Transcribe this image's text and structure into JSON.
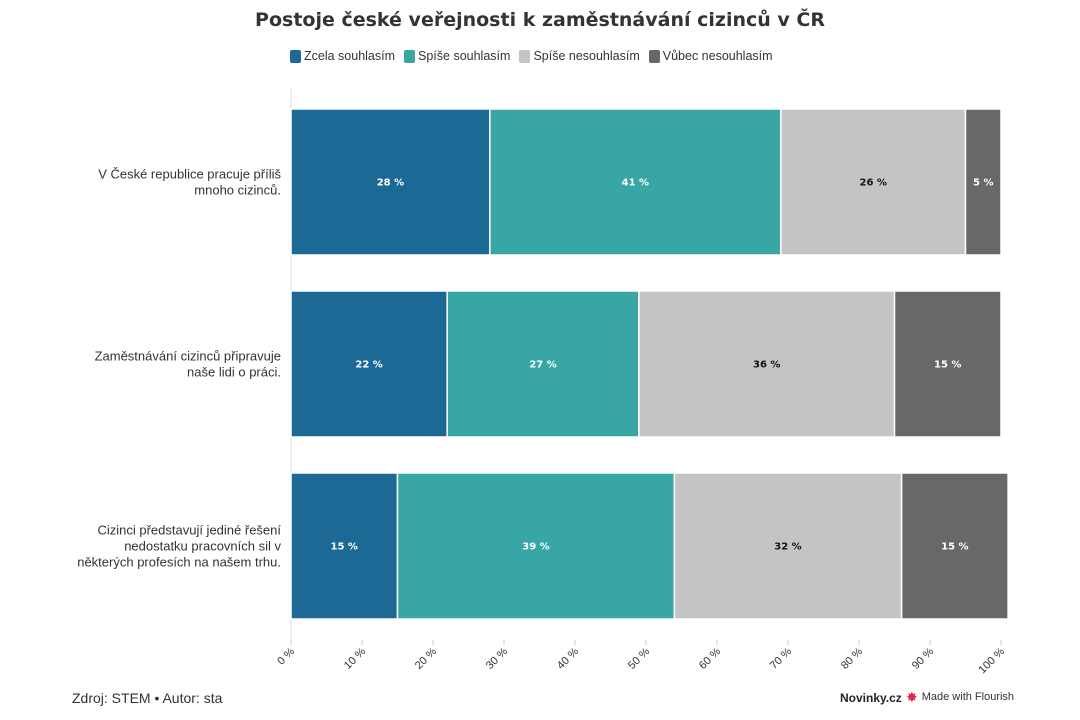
{
  "title": "Postoje české veřejnosti k zaměstnávání cizinců v ČR",
  "legend": [
    {
      "label": "Zcela souhlasím",
      "color": "#1d6996"
    },
    {
      "label": "Spíše souhlasím",
      "color": "#38a6a5"
    },
    {
      "label": "Spíše nesouhlasím",
      "color": "#c4c4c4"
    },
    {
      "label": "Vůbec nesouhlasím",
      "color": "#686868"
    }
  ],
  "chart_data": {
    "type": "bar",
    "orientation": "horizontal",
    "stacked": true,
    "categories": [
      [
        "V České republice pracuje příliš",
        "mnoho cizinců."
      ],
      [
        "Zaměstnávání cizinců připravuje",
        "naše lidi o práci."
      ],
      [
        "Cizinci představují jediné řešení",
        "nedostatku pracovních sil v",
        "některých profesích na našem trhu."
      ]
    ],
    "series": [
      {
        "name": "Zcela souhlasím",
        "values": [
          28,
          22,
          15
        ],
        "labels": [
          "28 %",
          "22 %",
          "15 %"
        ],
        "label_color": "#ffffff"
      },
      {
        "name": "Spíše souhlasím",
        "values": [
          41,
          27,
          39
        ],
        "labels": [
          "41 %",
          "27 %",
          "39 %"
        ],
        "label_color": "#ffffff"
      },
      {
        "name": "Spíše nesouhlasím",
        "values": [
          26,
          36,
          32
        ],
        "labels": [
          "26 %",
          "36 %",
          "32 %"
        ],
        "label_color": "#111111"
      },
      {
        "name": "Vůbec nesouhlasím",
        "values": [
          5,
          15,
          15
        ],
        "labels": [
          "5 %",
          "15 %",
          "15 %"
        ],
        "label_color": "#ffffff"
      }
    ],
    "xlim": [
      0,
      100
    ],
    "ticks": [
      0,
      10,
      20,
      30,
      40,
      50,
      60,
      70,
      80,
      90,
      100
    ],
    "tick_labels": [
      "0 %",
      "10 %",
      "20 %",
      "30 %",
      "40 %",
      "50 %",
      "60 %",
      "70 %",
      "80 %",
      "90 %",
      "100 %"
    ],
    "legend_position": "top"
  },
  "footer": {
    "source": "Zdroj: STEM • Autor: sta",
    "brand": "Novinky.cz",
    "flourish": "Made with Flourish",
    "flourish_icon": "flourish-star-icon"
  }
}
